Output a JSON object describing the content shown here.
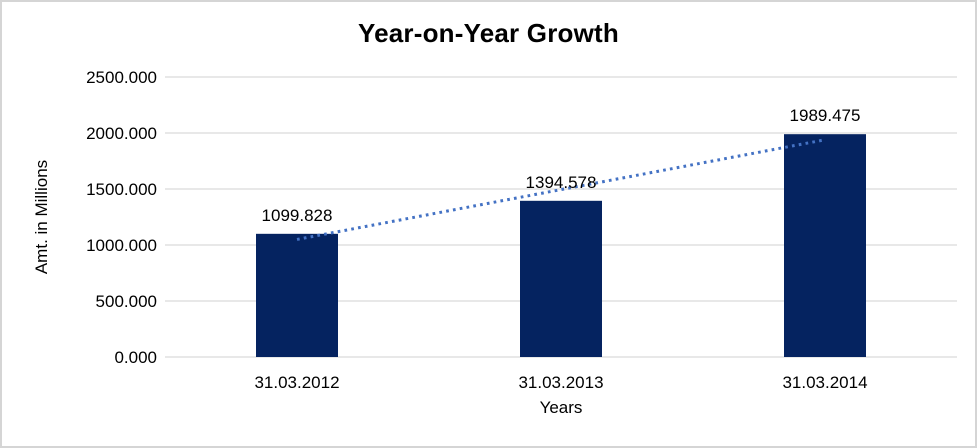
{
  "chart_data": {
    "type": "bar",
    "title": "Year-on-Year Growth",
    "xlabel": "Years",
    "ylabel": "Amt. in Millions",
    "categories": [
      "31.03.2012",
      "31.03.2013",
      "31.03.2014"
    ],
    "values": [
      1099.828,
      1394.578,
      1989.475
    ],
    "point_labels": [
      "1099.828",
      "1394.578",
      "1989.475"
    ],
    "ytick_labels": [
      "0.000",
      "500.000",
      "1000.000",
      "1500.000",
      "2000.000",
      "2500.000"
    ],
    "ytick_values": [
      0,
      500,
      1000,
      1500,
      2000,
      2500
    ],
    "ylim": [
      0,
      2500
    ],
    "grid": true,
    "legend": false,
    "trendline": {
      "type": "linear",
      "style": "dotted"
    },
    "colors": {
      "bar": "#052360",
      "trendline": "#4472C4",
      "gridline": "#D9D9D9",
      "text": "#000000",
      "background": "#FFFFFF",
      "frame_border": "#D5D5D5"
    }
  }
}
